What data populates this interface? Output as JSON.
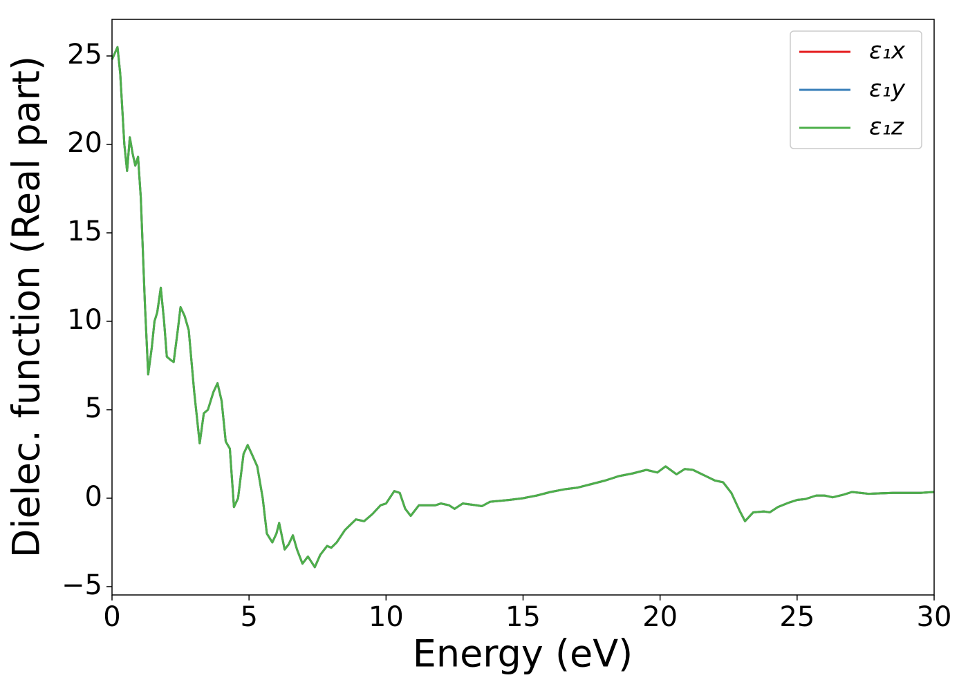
{
  "chart_data": {
    "type": "line",
    "x_label": "Energy (eV)",
    "y_label": "Dielec. function (Real part)",
    "x": [
      0,
      0.2,
      0.3,
      0.45,
      0.55,
      0.65,
      0.75,
      0.85,
      0.95,
      1.05,
      1.2,
      1.32,
      1.45,
      1.55,
      1.65,
      1.78,
      1.9,
      2.0,
      2.15,
      2.25,
      2.4,
      2.5,
      2.65,
      2.8,
      3.0,
      3.2,
      3.35,
      3.5,
      3.7,
      3.85,
      4.0,
      4.15,
      4.3,
      4.45,
      4.6,
      4.8,
      4.95,
      5.1,
      5.3,
      5.5,
      5.65,
      5.85,
      6.0,
      6.1,
      6.3,
      6.45,
      6.6,
      6.75,
      6.95,
      7.15,
      7.4,
      7.6,
      7.85,
      8.0,
      8.2,
      8.5,
      8.9,
      9.2,
      9.5,
      9.8,
      10.0,
      10.3,
      10.5,
      10.7,
      10.9,
      11.2,
      11.5,
      11.8,
      12.0,
      12.3,
      12.5,
      12.8,
      13.3,
      13.5,
      13.8,
      14.5,
      15.0,
      15.5,
      16.0,
      16.5,
      17.0,
      17.5,
      18.0,
      18.5,
      19.0,
      19.5,
      19.9,
      20.2,
      20.6,
      20.9,
      21.2,
      21.6,
      22.0,
      22.3,
      22.6,
      22.9,
      23.1,
      23.4,
      23.8,
      24.0,
      24.3,
      24.7,
      25.0,
      25.3,
      25.7,
      26.0,
      26.3,
      26.7,
      27.0,
      27.3,
      27.6,
      28.5,
      29.5,
      30.0
    ],
    "series": [
      {
        "name": "ε₁x",
        "color": "#e41a1c",
        "values": [
          24.8,
          25.5,
          24,
          20,
          18.5,
          20.4,
          19.5,
          18.8,
          19.3,
          17,
          11,
          7,
          8.5,
          10,
          10.5,
          11.9,
          10,
          8,
          7.8,
          7.7,
          9.5,
          10.8,
          10.3,
          9.5,
          6,
          3.1,
          4.8,
          5,
          6,
          6.5,
          5.5,
          3.2,
          2.8,
          -0.5,
          0,
          2.5,
          3,
          2.5,
          1.8,
          0,
          -2,
          -2.5,
          -2,
          -1.4,
          -2.9,
          -2.6,
          -2.1,
          -2.9,
          -3.7,
          -3.3,
          -3.9,
          -3.2,
          -2.7,
          -2.8,
          -2.5,
          -1.8,
          -1.2,
          -1.3,
          -0.9,
          -0.4,
          -0.3,
          0.4,
          0.3,
          -0.6,
          -1.0,
          -0.4,
          -0.4,
          -0.4,
          -0.3,
          -0.4,
          -0.6,
          -0.3,
          -0.4,
          -0.45,
          -0.2,
          -0.1,
          0,
          0.15,
          0.35,
          0.5,
          0.6,
          0.8,
          1.0,
          1.25,
          1.4,
          1.6,
          1.45,
          1.8,
          1.35,
          1.65,
          1.6,
          1.3,
          1.0,
          0.9,
          0.3,
          -0.7,
          -1.3,
          -0.8,
          -0.75,
          -0.8,
          -0.5,
          -0.25,
          -0.1,
          -0.05,
          0.15,
          0.15,
          0.05,
          0.2,
          0.35,
          0.3,
          0.25,
          0.3,
          0.3,
          0.35
        ]
      },
      {
        "name": "ε₁y",
        "color": "#377eb8",
        "values": [
          24.8,
          25.5,
          24,
          20,
          18.5,
          20.4,
          19.5,
          18.8,
          19.3,
          17,
          11,
          7,
          8.5,
          10,
          10.5,
          11.9,
          10,
          8,
          7.8,
          7.7,
          9.5,
          10.8,
          10.3,
          9.5,
          6,
          3.1,
          4.8,
          5,
          6,
          6.5,
          5.5,
          3.2,
          2.8,
          -0.5,
          0,
          2.5,
          3,
          2.5,
          1.8,
          0,
          -2,
          -2.5,
          -2,
          -1.4,
          -2.9,
          -2.6,
          -2.1,
          -2.9,
          -3.7,
          -3.3,
          -3.9,
          -3.2,
          -2.7,
          -2.8,
          -2.5,
          -1.8,
          -1.2,
          -1.3,
          -0.9,
          -0.4,
          -0.3,
          0.4,
          0.3,
          -0.6,
          -1.0,
          -0.4,
          -0.4,
          -0.4,
          -0.3,
          -0.4,
          -0.6,
          -0.3,
          -0.4,
          -0.45,
          -0.2,
          -0.1,
          0,
          0.15,
          0.35,
          0.5,
          0.6,
          0.8,
          1.0,
          1.25,
          1.4,
          1.6,
          1.45,
          1.8,
          1.35,
          1.65,
          1.6,
          1.3,
          1.0,
          0.9,
          0.3,
          -0.7,
          -1.3,
          -0.8,
          -0.75,
          -0.8,
          -0.5,
          -0.25,
          -0.1,
          -0.05,
          0.15,
          0.15,
          0.05,
          0.2,
          0.35,
          0.3,
          0.25,
          0.3,
          0.3,
          0.35
        ]
      },
      {
        "name": "ε₁z",
        "color": "#4daf4a",
        "values": [
          24.8,
          25.5,
          24,
          20,
          18.5,
          20.4,
          19.5,
          18.8,
          19.3,
          17,
          11,
          7,
          8.5,
          10,
          10.5,
          11.9,
          10,
          8,
          7.8,
          7.7,
          9.5,
          10.8,
          10.3,
          9.5,
          6,
          3.1,
          4.8,
          5,
          6,
          6.5,
          5.5,
          3.2,
          2.8,
          -0.5,
          0,
          2.5,
          3,
          2.5,
          1.8,
          0,
          -2,
          -2.5,
          -2,
          -1.4,
          -2.9,
          -2.6,
          -2.1,
          -2.9,
          -3.7,
          -3.3,
          -3.9,
          -3.2,
          -2.7,
          -2.8,
          -2.5,
          -1.8,
          -1.2,
          -1.3,
          -0.9,
          -0.4,
          -0.3,
          0.4,
          0.3,
          -0.6,
          -1.0,
          -0.4,
          -0.4,
          -0.4,
          -0.3,
          -0.4,
          -0.6,
          -0.3,
          -0.4,
          -0.45,
          -0.2,
          -0.1,
          0,
          0.15,
          0.35,
          0.5,
          0.6,
          0.8,
          1.0,
          1.25,
          1.4,
          1.6,
          1.45,
          1.8,
          1.35,
          1.65,
          1.6,
          1.3,
          1.0,
          0.9,
          0.3,
          -0.7,
          -1.3,
          -0.8,
          -0.75,
          -0.8,
          -0.5,
          -0.25,
          -0.1,
          -0.05,
          0.15,
          0.15,
          0.05,
          0.2,
          0.35,
          0.3,
          0.25,
          0.3,
          0.3,
          0.35
        ]
      }
    ],
    "xlim": [
      0,
      30
    ],
    "xticks": [
      0,
      5,
      10,
      15,
      20,
      25,
      30
    ],
    "ylim": [
      -5.47,
      27.07
    ],
    "yticks": [
      {
        "value": -5,
        "label": "−5"
      },
      0,
      5,
      10,
      15,
      20,
      25
    ],
    "grid": false,
    "legend": "upper right"
  }
}
